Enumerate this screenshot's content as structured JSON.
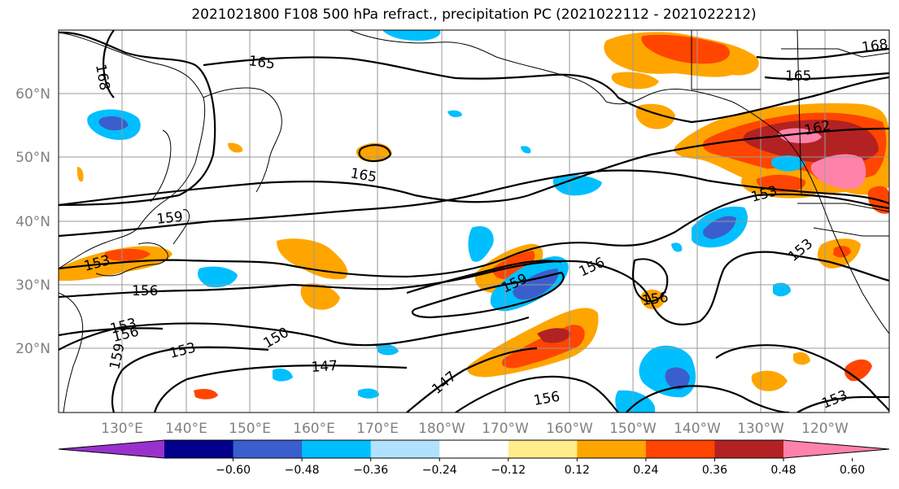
{
  "title": "2021021800 F108 500 hPa refract., precipitation PC (2021022112 - 2021022212)",
  "lat_labels": [
    "60°N",
    "50°N",
    "40°N",
    "30°N",
    "20°N"
  ],
  "lon_labels": [
    "130°E",
    "140°E",
    "150°E",
    "160°E",
    "170°E",
    "180°W",
    "170°W",
    "160°W",
    "150°W",
    "140°W",
    "130°W",
    "120°W"
  ],
  "colorbar": {
    "ticks": [
      "−0.60",
      "−0.48",
      "−0.36",
      "−0.24",
      "−0.12",
      "0.12",
      "0.24",
      "0.36",
      "0.48",
      "0.60"
    ],
    "colors": [
      "#9932cc",
      "#00008b",
      "#3a5fcd",
      "#00bfff",
      "#b0e2ff",
      "#ffffff",
      "#ffec8b",
      "#ffa500",
      "#ff4500",
      "#b22222",
      "#ff82ab"
    ]
  },
  "contour_labels": [
    "165",
    "168",
    "168",
    "165",
    "165",
    "162",
    "159",
    "153",
    "156",
    "153",
    "156",
    "159",
    "156",
    "153",
    "150",
    "147",
    "147",
    "153",
    "156",
    "156",
    "153",
    "153",
    "159"
  ],
  "colors": {
    "land_line": "#000000",
    "grid": "#999999",
    "frame": "#000000"
  }
}
